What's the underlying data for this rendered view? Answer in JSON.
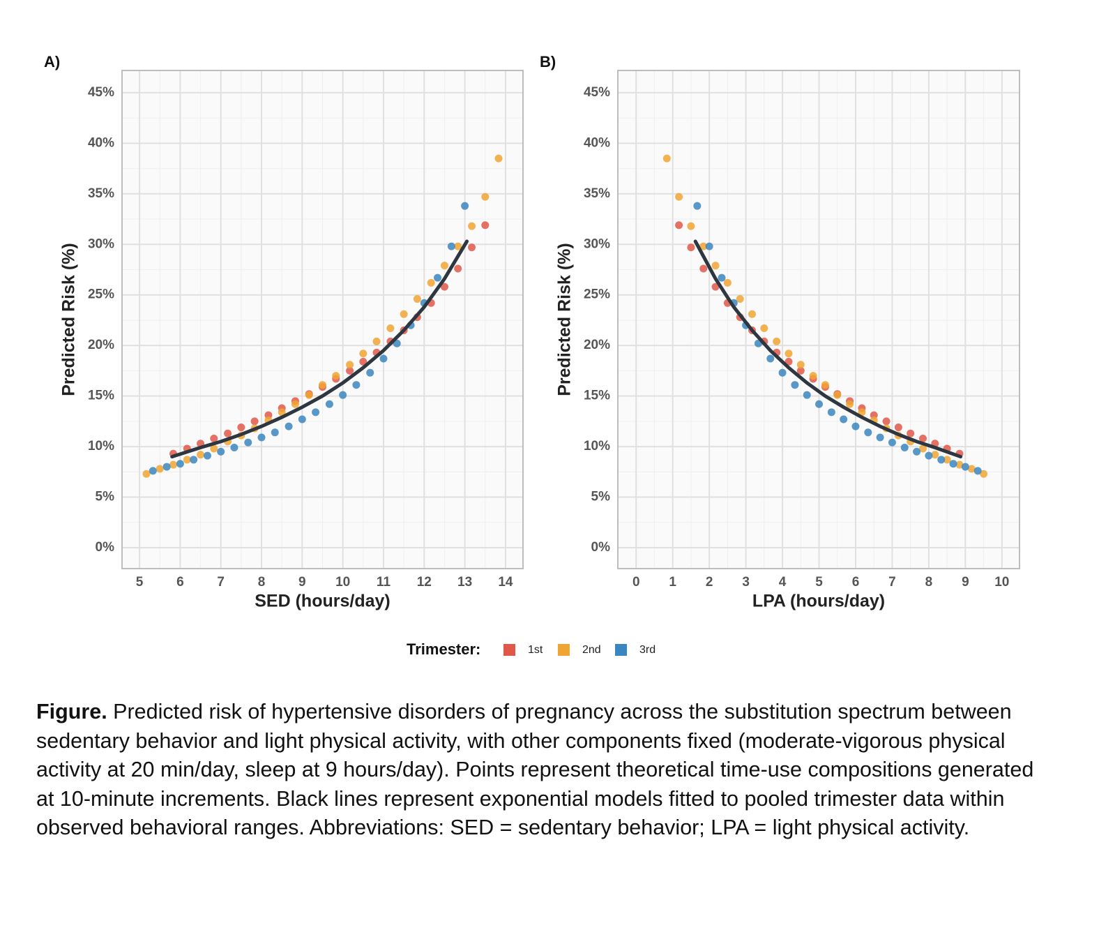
{
  "chart_data": [
    {
      "type": "scatter",
      "panel": "A)",
      "x_label": "SED (hours/day)",
      "y_label": "Predicted Risk (%)",
      "xlim": [
        4.57,
        14.43
      ],
      "ylim": [
        -2.07,
        47.2
      ],
      "xticks": [
        5,
        6,
        7,
        8,
        9,
        10,
        11,
        12,
        13,
        14
      ],
      "yticks": [
        {
          "value": 0,
          "label": "0%"
        },
        {
          "value": 5,
          "label": "5%"
        },
        {
          "value": 10,
          "label": "10%"
        },
        {
          "value": 15,
          "label": "15%"
        },
        {
          "value": 20,
          "label": "20%"
        },
        {
          "value": 25,
          "label": "25%"
        },
        {
          "value": 30,
          "label": "30%"
        },
        {
          "value": 35,
          "label": "35%"
        },
        {
          "value": 40,
          "label": "40%"
        },
        {
          "value": 45,
          "label": "45%"
        }
      ],
      "grid": true,
      "series": [
        {
          "name": "1st",
          "color": "#e0584a",
          "x": [
            5.83,
            6.17,
            6.5,
            6.83,
            7.17,
            7.5,
            7.83,
            8.17,
            8.5,
            8.83,
            9.17,
            9.5,
            9.83,
            10.17,
            10.5,
            10.83,
            11.17,
            11.5,
            11.83,
            12.17,
            12.5,
            12.83,
            13.17,
            13.5
          ],
          "values": [
            9.3,
            9.8,
            10.3,
            10.8,
            11.3,
            11.9,
            12.5,
            13.1,
            13.8,
            14.5,
            15.2,
            15.9,
            16.7,
            17.5,
            18.4,
            19.3,
            20.4,
            21.5,
            22.8,
            24.2,
            25.8,
            27.6,
            29.7,
            31.9
          ]
        },
        {
          "name": "2nd",
          "color": "#f0a432",
          "x": [
            5.17,
            5.5,
            5.83,
            6.17,
            6.5,
            6.83,
            7.17,
            7.5,
            7.83,
            8.17,
            8.5,
            8.83,
            9.17,
            9.5,
            9.83,
            10.17,
            10.5,
            10.83,
            11.17,
            11.5,
            11.83,
            12.17,
            12.5,
            12.83,
            13.17,
            13.5,
            13.83
          ],
          "values": [
            7.3,
            7.8,
            8.2,
            8.7,
            9.2,
            9.8,
            10.5,
            11.1,
            11.8,
            12.6,
            13.4,
            14.2,
            15.1,
            16.1,
            17.0,
            18.1,
            19.2,
            20.4,
            21.7,
            23.1,
            24.6,
            26.2,
            27.9,
            29.8,
            31.8,
            34.7,
            38.5
          ]
        },
        {
          "name": "3rd",
          "color": "#3a86c0",
          "x": [
            5.33,
            5.67,
            6.0,
            6.33,
            6.67,
            7.0,
            7.33,
            7.67,
            8.0,
            8.33,
            8.67,
            9.0,
            9.33,
            9.67,
            10.0,
            10.33,
            10.67,
            11.0,
            11.33,
            11.67,
            12.0,
            12.33,
            12.67,
            13.0
          ],
          "values": [
            7.6,
            8.0,
            8.3,
            8.7,
            9.1,
            9.5,
            9.9,
            10.4,
            10.9,
            11.4,
            12.0,
            12.7,
            13.4,
            14.2,
            15.1,
            16.1,
            17.3,
            18.7,
            20.2,
            22.0,
            24.2,
            26.7,
            29.8,
            33.8
          ]
        }
      ],
      "fit": {
        "color": "#2e3640",
        "x": [
          5.8,
          6.5,
          7,
          7.5,
          8,
          8.5,
          9,
          9.5,
          10,
          10.5,
          11,
          11.5,
          12,
          12.5,
          13.05
        ],
        "values": [
          9.0,
          9.9,
          10.5,
          11.2,
          12.0,
          12.9,
          13.9,
          15.0,
          16.3,
          17.8,
          19.5,
          21.5,
          23.8,
          26.6,
          30.3
        ]
      }
    },
    {
      "type": "scatter",
      "panel": "B)",
      "x_label": "LPA (hours/day)",
      "y_label": "Predicted Risk (%)",
      "xlim": [
        -0.5,
        10.48
      ],
      "ylim": [
        -2.07,
        47.2
      ],
      "xticks": [
        0,
        1,
        2,
        3,
        4,
        5,
        6,
        7,
        8,
        9,
        10
      ],
      "yticks": [
        {
          "value": 0,
          "label": "0%"
        },
        {
          "value": 5,
          "label": "5%"
        },
        {
          "value": 10,
          "label": "10%"
        },
        {
          "value": 15,
          "label": "15%"
        },
        {
          "value": 20,
          "label": "20%"
        },
        {
          "value": 25,
          "label": "25%"
        },
        {
          "value": 30,
          "label": "30%"
        },
        {
          "value": 35,
          "label": "35%"
        },
        {
          "value": 40,
          "label": "40%"
        },
        {
          "value": 45,
          "label": "45%"
        }
      ],
      "grid": true,
      "series": [
        {
          "color": "#e0584a",
          "x": [
            8.84,
            8.5,
            8.17,
            7.84,
            7.5,
            7.17,
            6.84,
            6.5,
            6.17,
            5.84,
            5.5,
            5.17,
            4.84,
            4.5,
            4.17,
            3.84,
            3.5,
            3.17,
            2.84,
            2.5,
            2.17,
            1.84,
            1.5,
            1.17
          ],
          "values": [
            9.3,
            9.8,
            10.3,
            10.8,
            11.3,
            11.9,
            12.5,
            13.1,
            13.8,
            14.5,
            15.2,
            15.9,
            16.7,
            17.5,
            18.4,
            19.3,
            20.4,
            21.5,
            22.8,
            24.2,
            25.8,
            27.6,
            29.7,
            31.9
          ]
        },
        {
          "color": "#f0a432",
          "x": [
            9.5,
            9.17,
            8.84,
            8.5,
            8.17,
            7.84,
            7.5,
            7.17,
            6.84,
            6.5,
            6.17,
            5.84,
            5.5,
            5.17,
            4.84,
            4.5,
            4.17,
            3.84,
            3.5,
            3.17,
            2.84,
            2.5,
            2.17,
            1.84,
            1.5,
            1.17,
            0.84
          ],
          "values": [
            7.3,
            7.8,
            8.2,
            8.7,
            9.2,
            9.8,
            10.5,
            11.1,
            11.8,
            12.6,
            13.4,
            14.2,
            15.1,
            16.1,
            17.0,
            18.1,
            19.2,
            20.4,
            21.7,
            23.1,
            24.6,
            26.2,
            27.9,
            29.8,
            31.8,
            34.7,
            38.5
          ]
        },
        {
          "color": "#3a86c0",
          "x": [
            9.34,
            9.0,
            8.67,
            8.34,
            8.0,
            7.67,
            7.34,
            7.0,
            6.67,
            6.34,
            6.0,
            5.67,
            5.34,
            5.0,
            4.67,
            4.34,
            4.0,
            3.67,
            3.34,
            3.0,
            2.67,
            2.34,
            2.0,
            1.67
          ],
          "values": [
            7.6,
            8.0,
            8.3,
            8.7,
            9.1,
            9.5,
            9.9,
            10.4,
            10.9,
            11.4,
            12.0,
            12.7,
            13.4,
            14.2,
            15.1,
            16.1,
            17.3,
            18.7,
            20.2,
            22.0,
            24.2,
            26.7,
            29.8,
            33.8
          ]
        }
      ],
      "fit": {
        "color": "#2e3640",
        "x": [
          8.87,
          8.17,
          7.67,
          7.17,
          6.67,
          6.17,
          5.67,
          5.17,
          4.67,
          4.17,
          3.67,
          3.17,
          2.67,
          2.17,
          1.62
        ],
        "values": [
          9.0,
          9.9,
          10.5,
          11.2,
          12.0,
          12.9,
          13.9,
          15.0,
          16.3,
          17.8,
          19.5,
          21.5,
          23.8,
          26.6,
          30.3
        ]
      }
    }
  ],
  "legend": {
    "title": "Trimester:"
  },
  "caption": {
    "label": "Figure.",
    "text": "Predicted risk of hypertensive disorders of pregnancy across the substitution spectrum between sedentary behavior and light physical activity, with other components fixed (moderate-vigorous physical activity at 20 min/day, sleep at 9 hours/day). Points represent theoretical time-use compositions generated at 10-minute increments. Black lines represent exponential models fitted to pooled trimester data within observed behavioral ranges. Abbreviations: SED = sedentary behavior; LPA = light physical activity."
  }
}
